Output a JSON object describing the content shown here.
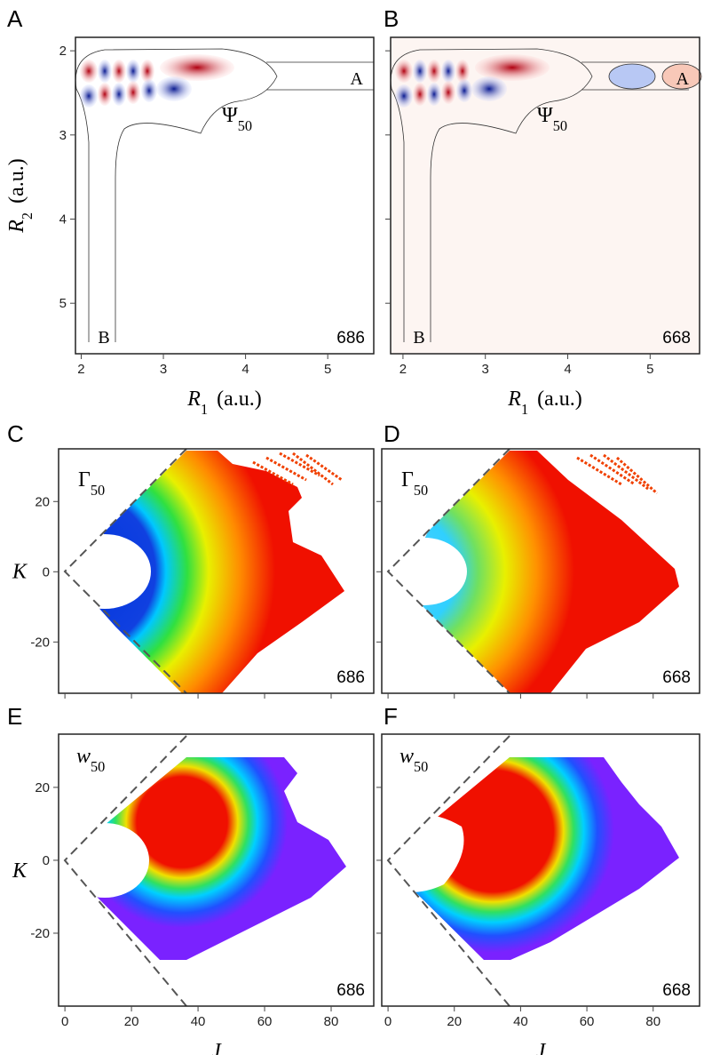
{
  "chart_data": [
    {
      "type": "heatmap",
      "panel": "A",
      "label": "Ψ",
      "label_sub": "50",
      "label_italic": false,
      "isotope": "686",
      "annotations": [
        "A",
        "B"
      ],
      "xlabel": "R",
      "xlabel_sub": "1",
      "xlabel_unit": "(a.u.)",
      "ylabel": "R",
      "ylabel_sub": "2",
      "ylabel_unit": "(a.u.)",
      "xlim": [
        1.93,
        5.56
      ],
      "ylim": [
        5.6,
        1.84
      ],
      "xticks": [
        2,
        3,
        4,
        5
      ],
      "yticks": [
        2,
        3,
        4,
        5
      ],
      "show_xtick_labels": true,
      "show_ytick_labels": true
    },
    {
      "type": "heatmap",
      "panel": "B",
      "label": "Ψ",
      "label_sub": "50",
      "label_italic": false,
      "isotope": "668",
      "annotations": [
        "A",
        "B"
      ],
      "xlabel": "R",
      "xlabel_sub": "1",
      "xlabel_unit": "(a.u.)",
      "xlim": [
        1.85,
        5.6
      ],
      "ylim": [
        5.6,
        1.84
      ],
      "xticks": [
        2,
        3,
        4,
        5
      ],
      "yticks": [
        2,
        3,
        4,
        5
      ],
      "show_xtick_labels": true,
      "show_ytick_labels": false
    },
    {
      "type": "heatmap",
      "panel": "C",
      "label": "Γ",
      "label_sub": "50",
      "label_italic": false,
      "isotope": "686",
      "ylabel": "K",
      "xlim": [
        -1.9,
        92.8
      ],
      "ylim": [
        -34.6,
        35
      ],
      "xticks": [
        0,
        20,
        40,
        60,
        80
      ],
      "yticks": [
        -20,
        0,
        20
      ],
      "show_xtick_labels": false,
      "show_ytick_labels": true
    },
    {
      "type": "heatmap",
      "panel": "D",
      "label": "Γ",
      "label_sub": "50",
      "label_italic": false,
      "isotope": "668",
      "xlim": [
        -1.9,
        94
      ],
      "ylim": [
        -34.6,
        35
      ],
      "xticks": [
        0,
        20,
        40,
        60,
        80
      ],
      "yticks": [
        -20,
        0,
        20
      ],
      "show_xtick_labels": false,
      "show_ytick_labels": false
    },
    {
      "type": "heatmap",
      "panel": "E",
      "label": "w",
      "label_sub": "50",
      "label_italic": true,
      "isotope": "686",
      "ylabel": "K",
      "xlabel": "J",
      "xlim": [
        -1.9,
        92.8
      ],
      "ylim": [
        -40,
        34.6
      ],
      "xticks": [
        0,
        20,
        40,
        60,
        80
      ],
      "yticks": [
        -20,
        0,
        20
      ],
      "show_xtick_labels": true,
      "show_ytick_labels": true
    },
    {
      "type": "heatmap",
      "panel": "F",
      "label": "w",
      "label_sub": "50",
      "label_italic": true,
      "isotope": "668",
      "xlabel": "J",
      "xlim": [
        -1.9,
        94
      ],
      "ylim": [
        -40,
        34.6
      ],
      "xticks": [
        0,
        20,
        40,
        60,
        80
      ],
      "yticks": [
        -20,
        0,
        20
      ],
      "show_xtick_labels": true,
      "show_ytick_labels": false
    }
  ]
}
